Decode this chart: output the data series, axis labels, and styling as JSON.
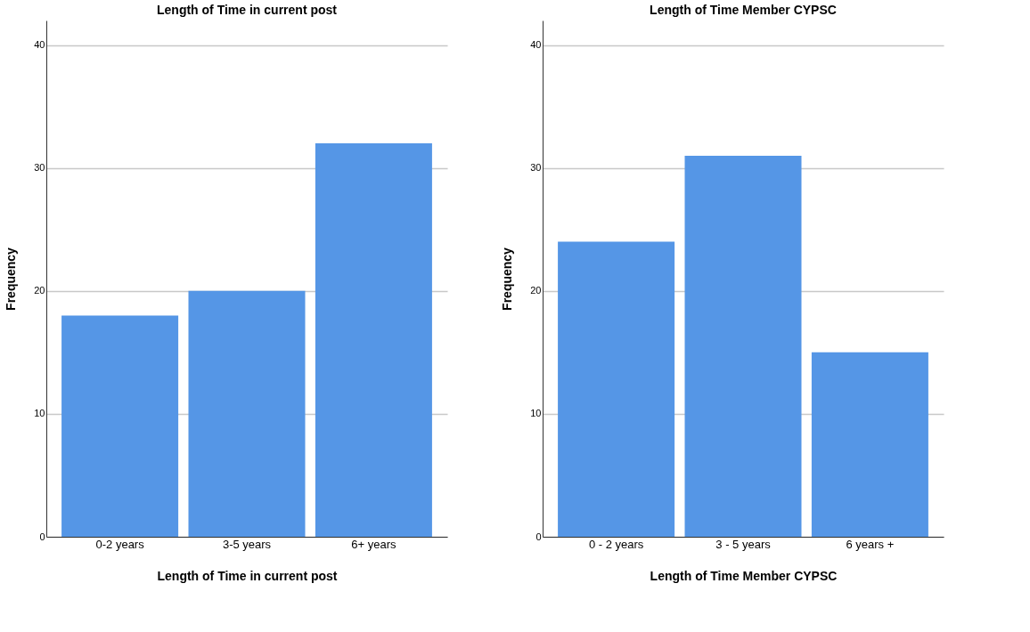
{
  "chart_data": [
    {
      "type": "bar",
      "title": "Length of Time in current post",
      "xlabel": "Length of Time in current post",
      "ylabel": "Frequency",
      "categories": [
        "0-2 years",
        "3-5 years",
        "6+ years"
      ],
      "values": [
        18,
        20,
        32
      ],
      "color": "#5596e6",
      "ylim": [
        0,
        42
      ],
      "yticks": [
        0,
        10,
        20,
        30,
        40
      ],
      "grid": "y"
    },
    {
      "type": "bar",
      "title": "Length of Time Member CYPSC",
      "xlabel": "Length of Time Member CYPSC",
      "ylabel": "Frequency",
      "categories": [
        "0 - 2 years",
        "3 - 5 years",
        "6 years +"
      ],
      "values": [
        24,
        31,
        15
      ],
      "color": "#5596e6",
      "ylim": [
        0,
        42
      ],
      "yticks": [
        0,
        10,
        20,
        30,
        40
      ],
      "grid": "y"
    }
  ]
}
